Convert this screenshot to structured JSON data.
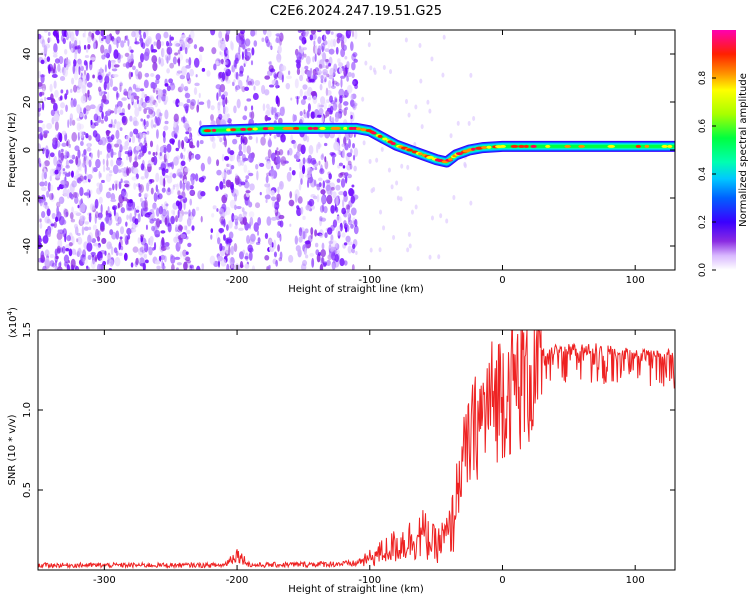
{
  "title": "C2E6.2024.247.19.51.G25",
  "chart_data": [
    {
      "type": "heatmap",
      "xlabel": "Height of straight line (km)",
      "ylabel": "Frequency (Hz)",
      "xlim": [
        -350,
        130
      ],
      "ylim": [
        -50,
        50
      ],
      "xticks": [
        -300,
        -200,
        -100,
        0,
        100
      ],
      "yticks": [
        -40,
        -20,
        0,
        20,
        40
      ],
      "colorbar": {
        "label": "Normalized spectral amplitude",
        "range": [
          0,
          1
        ],
        "ticks": [
          "0.0",
          "0.2",
          "0.4",
          "0.6",
          "0.8"
        ],
        "colors": [
          "#ffffff",
          "#d9b8ff",
          "#8a2be2",
          "#3a00ff",
          "#0040ff",
          "#00c8ff",
          "#00ffb0",
          "#00ff40",
          "#a8ff00",
          "#ffff00",
          "#ff9000",
          "#ff2000",
          "#ff0050",
          "#ff00b0"
        ]
      },
      "noise_band_x": [
        -350,
        -110
      ],
      "signal_path": [
        {
          "x": -225,
          "f": 8
        },
        {
          "x": -200,
          "f": 8.5
        },
        {
          "x": -175,
          "f": 9
        },
        {
          "x": -150,
          "f": 9
        },
        {
          "x": -125,
          "f": 9
        },
        {
          "x": -110,
          "f": 9
        },
        {
          "x": -100,
          "f": 8
        },
        {
          "x": -90,
          "f": 5
        },
        {
          "x": -80,
          "f": 2
        },
        {
          "x": -70,
          "f": 0
        },
        {
          "x": -60,
          "f": -2
        },
        {
          "x": -50,
          "f": -4
        },
        {
          "x": -42,
          "f": -5
        },
        {
          "x": -35,
          "f": -2
        },
        {
          "x": -25,
          "f": 0
        },
        {
          "x": -15,
          "f": 1
        },
        {
          "x": 0,
          "f": 1.5
        },
        {
          "x": 20,
          "f": 1.5
        },
        {
          "x": 60,
          "f": 1.5
        },
        {
          "x": 100,
          "f": 1.5
        },
        {
          "x": 130,
          "f": 1.5
        }
      ]
    },
    {
      "type": "line",
      "xlabel": "Height of straight line (km)",
      "ylabel": "SNR (10 * v/v)",
      "scale_label": "(x10",
      "scale_exp": "4",
      "scale_suffix": ")",
      "xlim": [
        -350,
        130
      ],
      "ylim": [
        0,
        1.5
      ],
      "xticks": [
        -300,
        -200,
        -100,
        0,
        100
      ],
      "yticks": [
        "0.5",
        "1.0",
        "1.5"
      ],
      "color": "#ee2222",
      "envelope": [
        {
          "x": -350,
          "y": 0.03
        },
        {
          "x": -210,
          "y": 0.03
        },
        {
          "x": -200,
          "y": 0.1
        },
        {
          "x": -190,
          "y": 0.03
        },
        {
          "x": -110,
          "y": 0.04
        },
        {
          "x": -100,
          "y": 0.1
        },
        {
          "x": -85,
          "y": 0.18
        },
        {
          "x": -70,
          "y": 0.25
        },
        {
          "x": -60,
          "y": 0.3
        },
        {
          "x": -50,
          "y": 0.2
        },
        {
          "x": -40,
          "y": 0.3
        },
        {
          "x": -30,
          "y": 0.75
        },
        {
          "x": -20,
          "y": 1.0
        },
        {
          "x": -10,
          "y": 1.15
        },
        {
          "x": 0,
          "y": 1.25
        },
        {
          "x": 10,
          "y": 1.3
        },
        {
          "x": 25,
          "y": 1.38
        },
        {
          "x": 40,
          "y": 1.42
        },
        {
          "x": 70,
          "y": 1.42
        },
        {
          "x": 100,
          "y": 1.38
        },
        {
          "x": 130,
          "y": 1.38
        }
      ]
    }
  ]
}
